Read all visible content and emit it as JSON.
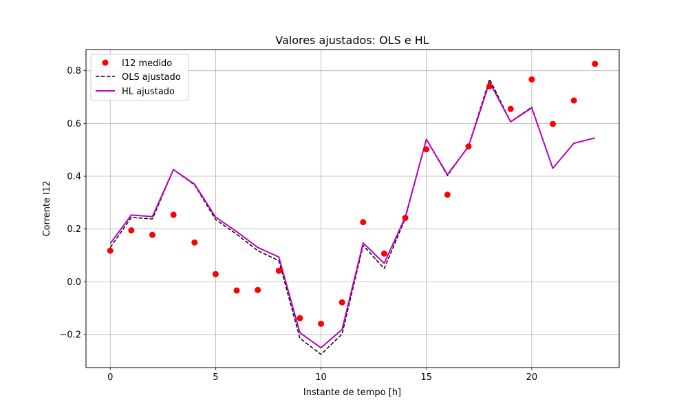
{
  "chart_data": {
    "type": "line",
    "title": "Valores ajustados: OLS e HL",
    "xlabel": "Instante de tempo [h]",
    "ylabel": "Corrente I12",
    "xlim": [
      -1.15,
      24.15
    ],
    "ylim": [
      -0.325,
      0.88
    ],
    "xticks": [
      0,
      5,
      10,
      15,
      20
    ],
    "xtick_labels": [
      "0",
      "5",
      "10",
      "15",
      "20"
    ],
    "yticks": [
      -0.2,
      0.0,
      0.2,
      0.4,
      0.6,
      0.8
    ],
    "ytick_labels": [
      "−0.2",
      "0.0",
      "0.2",
      "0.4",
      "0.6",
      "0.8"
    ],
    "grid": true,
    "legend_position": "upper left",
    "x": [
      0,
      1,
      2,
      3,
      4,
      5,
      6,
      7,
      8,
      9,
      10,
      11,
      12,
      13,
      14,
      15,
      16,
      17,
      18,
      19,
      20,
      21,
      22,
      23
    ],
    "series": [
      {
        "name": "I12 medido",
        "kind": "scatter",
        "color": "#ff0000",
        "values": [
          0.118,
          0.195,
          0.178,
          0.254,
          0.149,
          0.029,
          -0.033,
          -0.031,
          0.042,
          -0.138,
          -0.159,
          -0.078,
          0.226,
          0.107,
          0.242,
          0.502,
          0.33,
          0.513,
          0.741,
          0.655,
          0.767,
          0.598,
          0.687,
          0.826
        ]
      },
      {
        "name": "OLS ajustado",
        "kind": "line",
        "style": "dashed",
        "color": "#000000",
        "values": [
          0.13,
          0.244,
          0.238,
          0.425,
          0.367,
          0.236,
          0.18,
          0.118,
          0.08,
          -0.214,
          -0.275,
          -0.198,
          0.138,
          0.05,
          0.24,
          0.54,
          0.402,
          0.515,
          0.768,
          0.607,
          0.662,
          0.43,
          0.525,
          0.545
        ]
      },
      {
        "name": "HL ajustado",
        "kind": "line",
        "style": "solid",
        "color": "#bf00bf",
        "values": [
          0.145,
          0.253,
          0.247,
          0.425,
          0.37,
          0.245,
          0.19,
          0.13,
          0.094,
          -0.193,
          -0.25,
          -0.181,
          0.147,
          0.07,
          0.245,
          0.54,
          0.406,
          0.513,
          0.757,
          0.606,
          0.659,
          0.43,
          0.525,
          0.545
        ]
      }
    ]
  }
}
